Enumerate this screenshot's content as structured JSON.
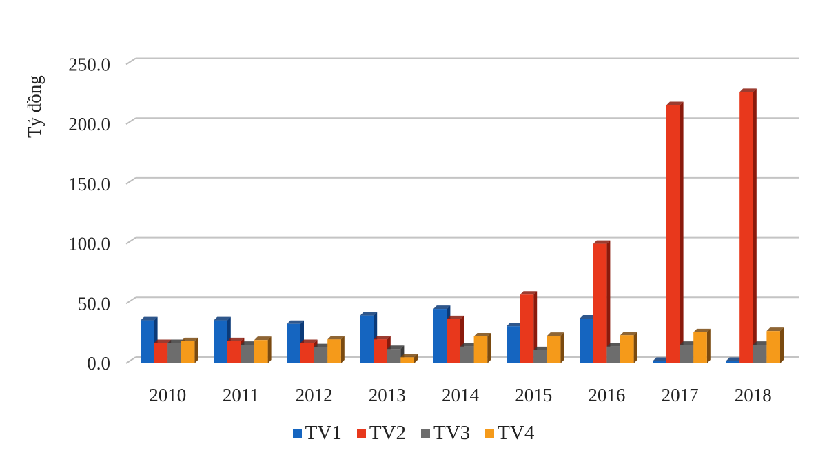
{
  "chart_data": {
    "type": "bar",
    "title": "",
    "xlabel": "",
    "ylabel": "Tỷ đồng",
    "ylim": [
      0,
      250
    ],
    "yticks": [
      "0.0",
      "50.0",
      "100.0",
      "150.0",
      "200.0",
      "250.0"
    ],
    "grid": true,
    "legend_position": "bottom",
    "style": "3d-clustered-column",
    "categories": [
      "2010",
      "2011",
      "2012",
      "2013",
      "2014",
      "2015",
      "2016",
      "2017",
      "2018"
    ],
    "series": [
      {
        "name": "TV1",
        "color": "#1565c0",
        "side": "#0b3a78",
        "values": [
          36,
          36,
          33,
          40,
          45.5,
          31,
          37.5,
          2,
          2
        ]
      },
      {
        "name": "TV2",
        "color": "#e8381c",
        "side": "#8a1a0c",
        "values": [
          17,
          18.5,
          17,
          20,
          37,
          57.5,
          100,
          216,
          227
        ]
      },
      {
        "name": "TV3",
        "color": "#6d6d6d",
        "side": "#3a3a3a",
        "values": [
          17,
          15.5,
          13.5,
          12,
          14,
          11,
          14,
          15.5,
          15.5
        ]
      },
      {
        "name": "TV4",
        "color": "#f59a1a",
        "side": "#7a4a10",
        "values": [
          18.5,
          19.5,
          20,
          5,
          22.5,
          23,
          23.5,
          26,
          27
        ]
      }
    ]
  },
  "axis": {
    "y_title": "Tỷ đồng"
  },
  "legend": {
    "items": [
      {
        "label": "TV1",
        "color": "#1565c0"
      },
      {
        "label": "TV2",
        "color": "#e8381c"
      },
      {
        "label": "TV3",
        "color": "#6d6d6d"
      },
      {
        "label": "TV4",
        "color": "#f59a1a"
      }
    ]
  }
}
